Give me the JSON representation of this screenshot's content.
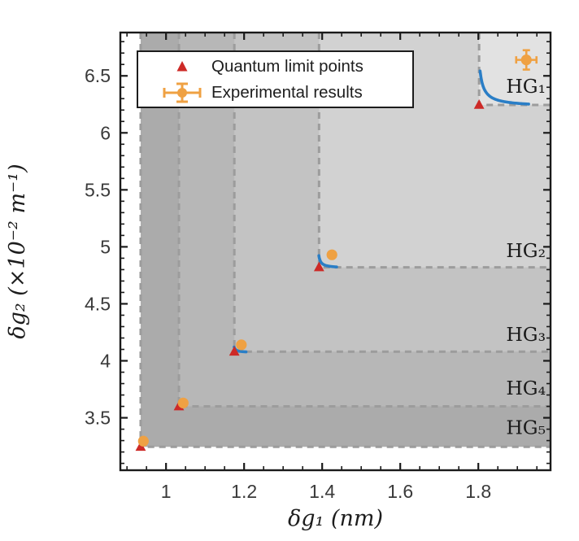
{
  "legend": {
    "items": [
      {
        "label": "Quantum limit points",
        "marker": "red-triangle"
      },
      {
        "label": "Experimental results",
        "marker": "orange-errorbar-point"
      }
    ]
  },
  "chart_data": {
    "type": "scatter",
    "title": "",
    "xlabel": "δg₁ (nm)",
    "ylabel": "δg₂ (×10⁻² m⁻¹)",
    "xlim": [
      0.883,
      1.985
    ],
    "ylim": [
      3.04,
      6.88
    ],
    "xticks": [
      1,
      1.2,
      1.4,
      1.6,
      1.8
    ],
    "xtick_labels": [
      "1",
      "1.2",
      "1.4",
      "1.6",
      "1.8"
    ],
    "x_minor_step": 0.05,
    "yticks": [
      3.5,
      4,
      4.5,
      5,
      5.5,
      6,
      6.5
    ],
    "ytick_labels": [
      "3.5",
      "4",
      "4.5",
      "5",
      "5.5",
      "6",
      "6.5"
    ],
    "y_minor_step": 0.1,
    "grid": false,
    "legend_position": "top-left-inside",
    "regions": [
      {
        "name": "HG₅",
        "corner": [
          0.935,
          3.245
        ],
        "fill": "#ababab",
        "label_y": 3.405
      },
      {
        "name": "HG₄",
        "corner": [
          1.033,
          3.6
        ],
        "fill": "#b7b7b7",
        "label_y": 3.75
      },
      {
        "name": "HG₃",
        "corner": [
          1.175,
          4.08
        ],
        "fill": "#c3c3c3",
        "label_y": 4.22
      },
      {
        "name": "HG₂",
        "corner": [
          1.392,
          4.82
        ],
        "fill": "#d2d2d2",
        "label_y": 4.955
      },
      {
        "name": "HG₁",
        "corner": [
          1.802,
          6.245
        ],
        "fill": "#e2e2e2",
        "label_y": 6.4
      }
    ],
    "region_border_color": "#9c9c9c",
    "series": [
      {
        "name": "Quantum limit points",
        "marker": "triangle",
        "color": "#cd2a27",
        "points": [
          [
            1.802,
            6.245
          ],
          [
            1.392,
            4.82
          ],
          [
            1.175,
            4.08
          ],
          [
            1.033,
            3.6
          ],
          [
            0.935,
            3.245
          ]
        ]
      },
      {
        "name": "Experimental results",
        "marker": "circle",
        "color": "#efa143",
        "points": [
          [
            1.923,
            6.64
          ],
          [
            1.425,
            4.93
          ],
          [
            1.193,
            4.14
          ],
          [
            1.044,
            3.63
          ],
          [
            0.942,
            3.295
          ]
        ],
        "error_bars": [
          {
            "point": 0,
            "xerr": 0.026,
            "yerr": 0.085
          }
        ]
      }
    ],
    "curves": [
      {
        "name": "quantum-limit-curve-hg1",
        "color": "#2a7ec6",
        "x0": 1.794,
        "y0": 6.228,
        "c": 0.0033,
        "x_start": 1.8045,
        "x_end": 1.929
      },
      {
        "name": "quantum-limit-curve-hg2",
        "color": "#2a7ec6",
        "x0": 1.3865,
        "y0": 4.8125,
        "c": 0.00055,
        "x_start": 1.3915,
        "x_end": 1.437
      },
      {
        "name": "quantum-limit-curve-hg3",
        "color": "#2a7ec6",
        "x0": 1.17,
        "y0": 4.072,
        "c": 0.00022,
        "x_start": 1.1745,
        "x_end": 1.205
      }
    ],
    "axis_color": "#1a1a1a",
    "tick_label_color": "#3a3a3a"
  }
}
